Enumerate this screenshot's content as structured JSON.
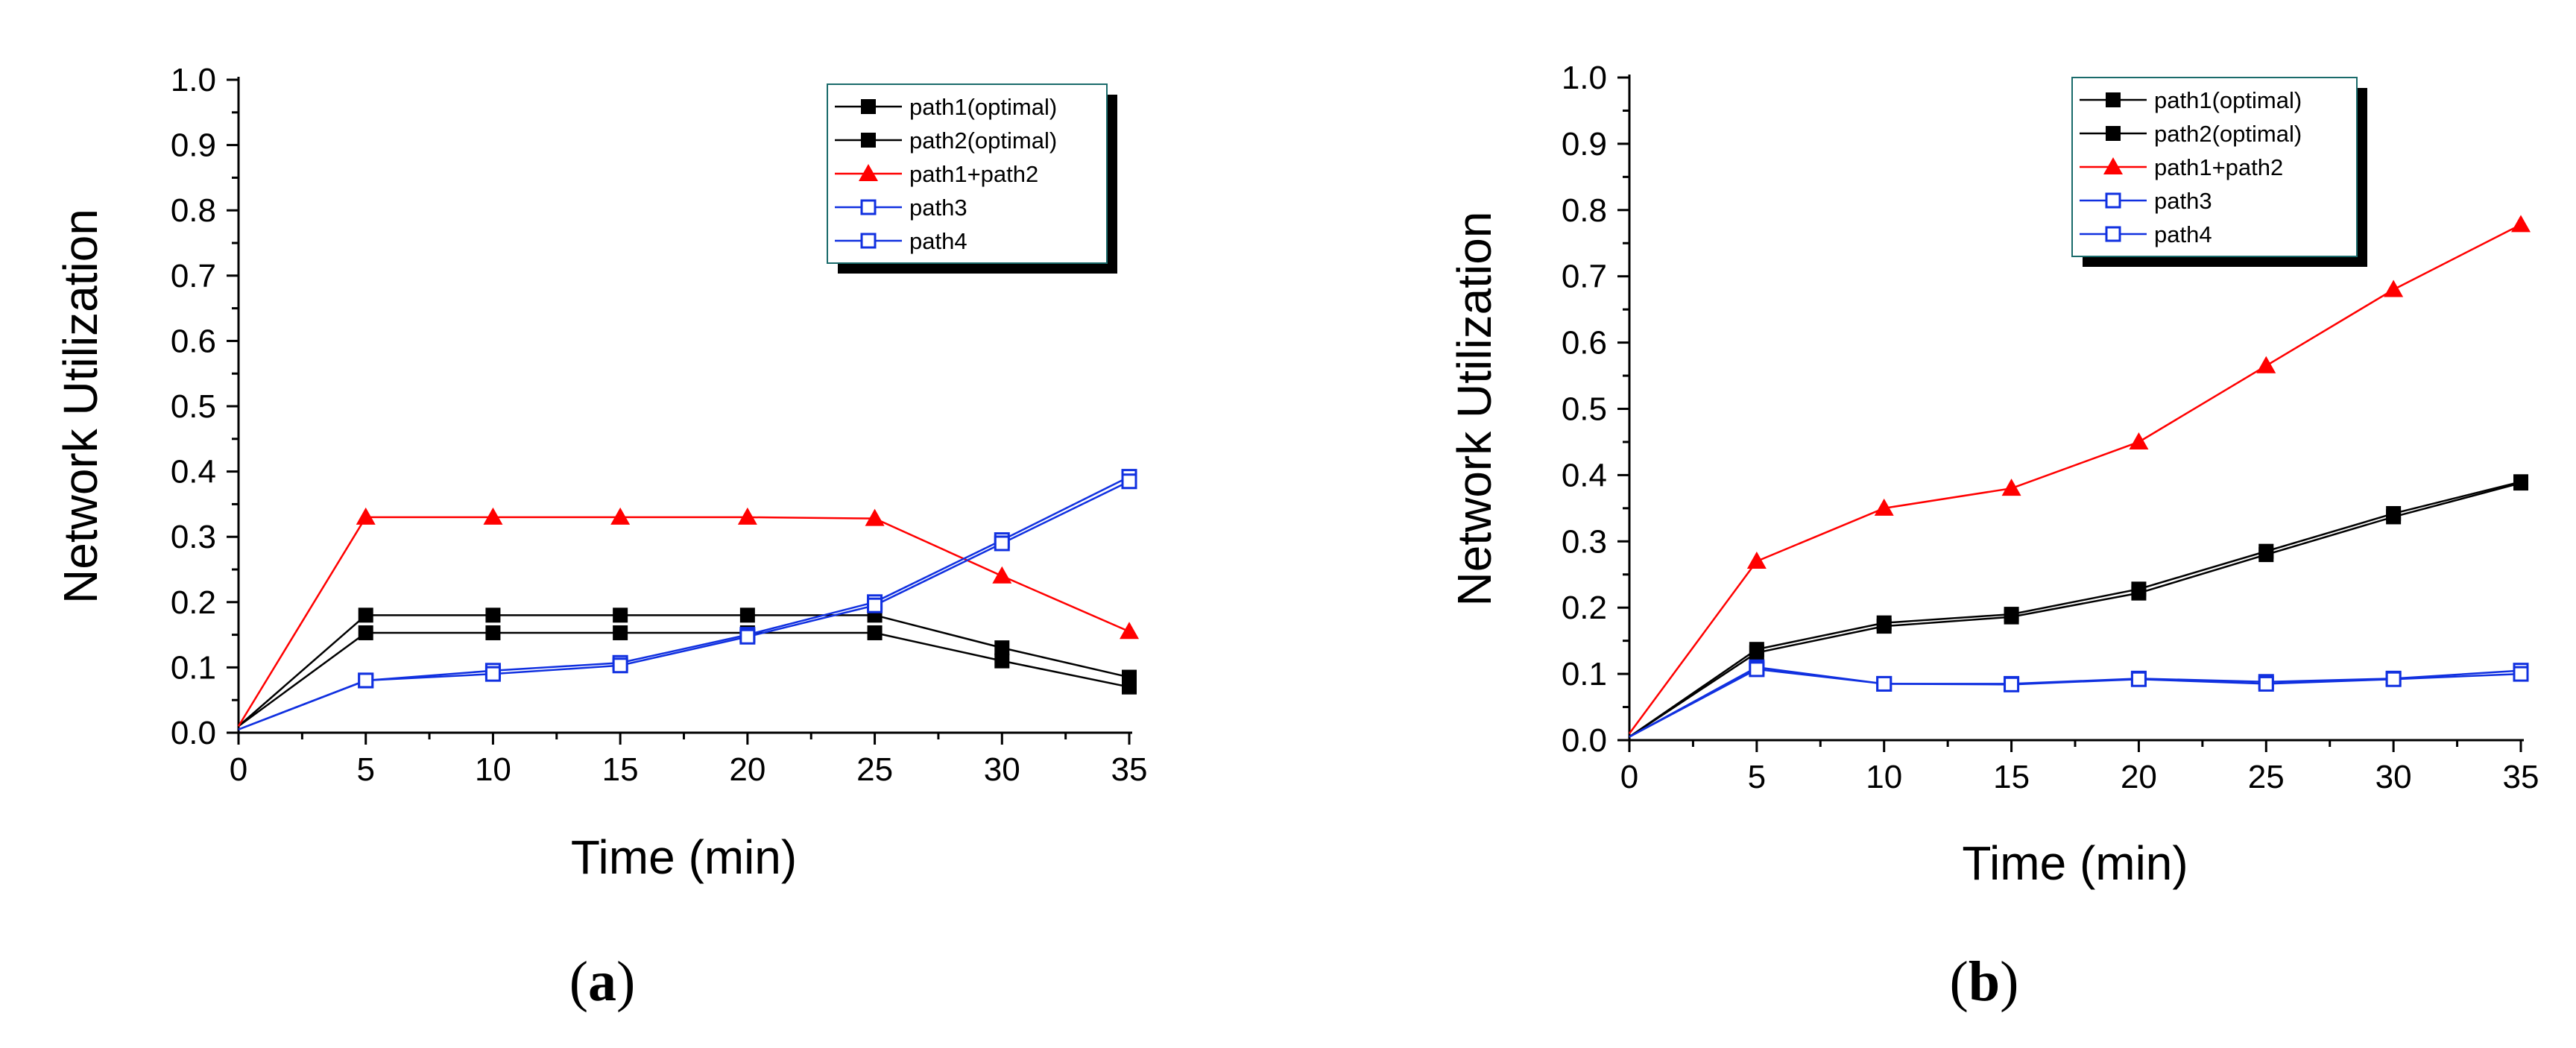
{
  "chart_data": [
    {
      "type": "line",
      "panel_label": "a",
      "xlabel": "Time (min)",
      "ylabel": "Network Utilization",
      "xlim": [
        0,
        35
      ],
      "ylim": [
        0.0,
        1.0
      ],
      "xticks": [
        0,
        5,
        10,
        15,
        20,
        25,
        30,
        35
      ],
      "yticks": [
        0.0,
        0.1,
        0.2,
        0.3,
        0.4,
        0.5,
        0.6,
        0.7,
        0.8,
        0.9,
        1.0
      ],
      "legend_position": "top-right",
      "x": [
        0,
        5,
        10,
        15,
        20,
        25,
        30,
        35
      ],
      "series": [
        {
          "name": "path1(optimal)",
          "color": "#000000",
          "marker": "square-filled",
          "values": [
            0.01,
            0.18,
            0.18,
            0.18,
            0.18,
            0.18,
            0.13,
            0.085
          ]
        },
        {
          "name": "path2(optimal)",
          "color": "#000000",
          "marker": "square-filled",
          "values": [
            0.01,
            0.153,
            0.153,
            0.153,
            0.153,
            0.153,
            0.11,
            0.07
          ]
        },
        {
          "name": "path1+path2",
          "color": "#ff0000",
          "marker": "triangle-filled",
          "values": [
            0.01,
            0.33,
            0.33,
            0.33,
            0.33,
            0.328,
            0.24,
            0.155
          ]
        },
        {
          "name": "path3",
          "color": "#1030e0",
          "marker": "square-open",
          "values": [
            0.005,
            0.08,
            0.095,
            0.107,
            0.15,
            0.2,
            0.295,
            0.392
          ]
        },
        {
          "name": "path4",
          "color": "#1030e0",
          "marker": "square-open",
          "values": [
            0.005,
            0.08,
            0.09,
            0.103,
            0.147,
            0.195,
            0.29,
            0.385
          ]
        }
      ]
    },
    {
      "type": "line",
      "panel_label": "b",
      "xlabel": "Time (min)",
      "ylabel": "Network Utilization",
      "xlim": [
        0,
        35
      ],
      "ylim": [
        0.0,
        1.0
      ],
      "xticks": [
        0,
        5,
        10,
        15,
        20,
        25,
        30,
        35
      ],
      "yticks": [
        0.0,
        0.1,
        0.2,
        0.3,
        0.4,
        0.5,
        0.6,
        0.7,
        0.8,
        0.9,
        1.0
      ],
      "legend_position": "top-right",
      "x": [
        0,
        5,
        10,
        15,
        20,
        25,
        30,
        35
      ],
      "series": [
        {
          "name": "path1(optimal)",
          "color": "#000000",
          "marker": "square-filled",
          "values": [
            0.005,
            0.137,
            0.177,
            0.19,
            0.228,
            0.285,
            0.342,
            0.39
          ]
        },
        {
          "name": "path2(optimal)",
          "color": "#000000",
          "marker": "square-filled",
          "values": [
            0.005,
            0.132,
            0.172,
            0.186,
            0.222,
            0.28,
            0.337,
            0.388
          ]
        },
        {
          "name": "path1+path2",
          "color": "#ff0000",
          "marker": "triangle-filled",
          "values": [
            0.01,
            0.27,
            0.35,
            0.38,
            0.45,
            0.565,
            0.68,
            0.778
          ]
        },
        {
          "name": "path3",
          "color": "#1030e0",
          "marker": "square-open",
          "values": [
            0.005,
            0.11,
            0.085,
            0.085,
            0.093,
            0.088,
            0.093,
            0.105
          ]
        },
        {
          "name": "path4",
          "color": "#1030e0",
          "marker": "square-open",
          "values": [
            0.005,
            0.107,
            0.085,
            0.084,
            0.092,
            0.085,
            0.092,
            0.1
          ]
        }
      ]
    }
  ]
}
